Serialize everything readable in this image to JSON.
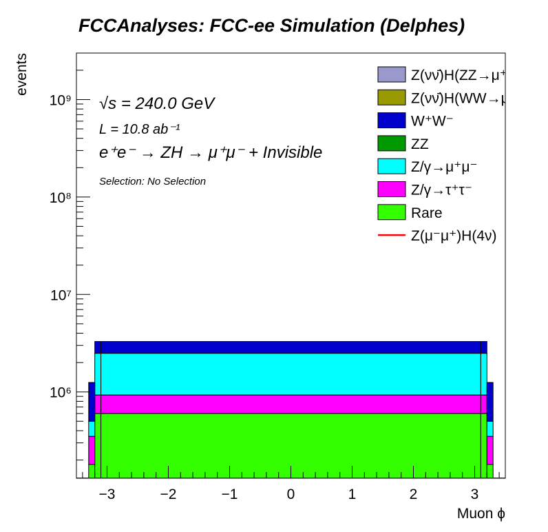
{
  "title": "FCCAnalyses: FCC-ee Simulation (Delphes)",
  "annotations": {
    "sqrt_s": "√s = 240.0 GeV",
    "luminosity": "L = 10.8 ab⁻¹",
    "process": "e⁺e⁻ → ZH → μ⁺μ⁻ + Invisible",
    "selection": "Selection: No Selection"
  },
  "chart_data": {
    "type": "bar",
    "stacked": true,
    "histogram": true,
    "xlabel": "Muon ϕ",
    "ylabel": "events",
    "xlim": [
      -3.5,
      3.5
    ],
    "ylim": [
      130000,
      3000000000
    ],
    "log_y": true,
    "xticks": [
      "−3",
      "−2",
      "−1",
      "0",
      "1",
      "2",
      "3"
    ],
    "yticks": [
      "10⁶",
      "10⁷",
      "10⁸",
      "10⁹"
    ],
    "bin_edges": [
      -3.5,
      -3.3,
      -3.2,
      -3.1,
      3.1,
      3.2,
      3.3,
      3.5
    ],
    "series": [
      {
        "name": "Rare",
        "color": "#33ff00",
        "values": [
          0,
          180000,
          600000,
          600000,
          600000,
          180000,
          0
        ]
      },
      {
        "name": "Z/γ→τ⁺τ⁻",
        "color": "#ff00ff",
        "values": [
          0,
          170000,
          330000,
          330000,
          330000,
          170000,
          0
        ]
      },
      {
        "name": "Z/γ→μ⁺μ⁻",
        "color": "#00ffff",
        "values": [
          0,
          150000,
          1560000,
          1560000,
          1560000,
          150000,
          0
        ]
      },
      {
        "name": "ZZ",
        "color": "#009900",
        "values": [
          0,
          0,
          0,
          0,
          0,
          0,
          0
        ]
      },
      {
        "name": "W⁺W⁻",
        "color": "#0000cc",
        "values": [
          0,
          750000,
          800000,
          800000,
          800000,
          750000,
          0
        ]
      },
      {
        "name": "Z(νν̄)H(WW→μ⁺νμ⁻ν̄)",
        "color": "#999900",
        "values": [
          0,
          0,
          0,
          0,
          0,
          0,
          0
        ]
      },
      {
        "name": "Z(νν̄)H(ZZ→μ⁺μ⁻ν⁺ν⁻)",
        "color": "#9999cc",
        "values": [
          0,
          0,
          0,
          0,
          0,
          0,
          0
        ]
      }
    ],
    "signal": {
      "name": "Z(μ⁻μ⁺)H(4ν)",
      "color": "#ff0000",
      "values": [
        0,
        0,
        0,
        0,
        0,
        0,
        0
      ]
    },
    "legend": {
      "position": "top-right",
      "entries": [
        {
          "label": "Z(νν̄)H(ZZ→μ⁺μ⁻ν⁺ν⁻)",
          "color": "#9999cc",
          "kind": "fill"
        },
        {
          "label": "Z(νν̄)H(WW→μ⁺νμ⁻ν̄)",
          "color": "#999900",
          "kind": "fill"
        },
        {
          "label": "W⁺W⁻",
          "color": "#0000cc",
          "kind": "fill"
        },
        {
          "label": "ZZ",
          "color": "#009900",
          "kind": "fill"
        },
        {
          "label": "Z/γ→μ⁺μ⁻",
          "color": "#00ffff",
          "kind": "fill"
        },
        {
          "label": "Z/γ→τ⁺τ⁻",
          "color": "#ff00ff",
          "kind": "fill"
        },
        {
          "label": "Rare",
          "color": "#33ff00",
          "kind": "fill"
        },
        {
          "label": "Z(μ⁻μ⁺)H(4ν)",
          "color": "#ff0000",
          "kind": "line"
        }
      ]
    }
  }
}
